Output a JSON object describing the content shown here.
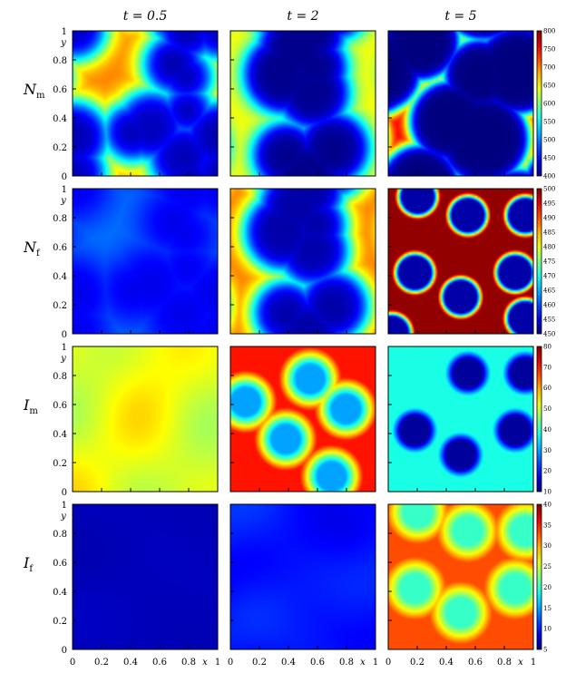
{
  "chart_data": {
    "type": "heatmap",
    "colormap": "jet",
    "column_titles": [
      "t = 0.5",
      "t = 2",
      "t = 5"
    ],
    "row_labels": [
      {
        "main": "N",
        "sub": "m"
      },
      {
        "main": "N",
        "sub": "f"
      },
      {
        "main": "I",
        "sub": "m"
      },
      {
        "main": "I",
        "sub": "f"
      }
    ],
    "axis_label_x": "x",
    "axis_label_y": "y",
    "x_range": [
      0,
      1
    ],
    "y_range": [
      0,
      1
    ],
    "x_ticks": [
      "0",
      "0.2",
      "0.4",
      "0.6",
      "0.8",
      "1"
    ],
    "y_ticks": [
      "0",
      "0.2",
      "0.4",
      "0.6",
      "0.8",
      "1"
    ],
    "colorbars": [
      {
        "min": 400,
        "max": 800,
        "ticks": [
          "400",
          "450",
          "500",
          "550",
          "600",
          "650",
          "700",
          "750",
          "800"
        ]
      },
      {
        "min": 450,
        "max": 500,
        "ticks": [
          "450",
          "455",
          "460",
          "465",
          "470",
          "475",
          "480",
          "485",
          "490",
          "495",
          "500"
        ]
      },
      {
        "min": 10,
        "max": 80,
        "ticks": [
          "10",
          "20",
          "30",
          "40",
          "50",
          "60",
          "70",
          "80"
        ]
      },
      {
        "min": 5,
        "max": 40,
        "ticks": [
          "5",
          "10",
          "15",
          "20",
          "25",
          "30",
          "35",
          "40"
        ]
      }
    ],
    "panels": [
      [
        {
          "pattern": "cells",
          "background": 700,
          "spot": 420,
          "seed": 1,
          "count": 9,
          "rmin": 0.18,
          "rmax": 0.26,
          "noise": 0.03,
          "sharp": 22
        },
        {
          "pattern": "cells",
          "background": 650,
          "spot": 405,
          "seed": 2,
          "count": 7,
          "rmin": 0.22,
          "rmax": 0.3,
          "noise": 0.02,
          "sharp": 26
        },
        {
          "pattern": "cells",
          "background": 760,
          "spot": 400,
          "seed": 3,
          "count": 6,
          "rmin": 0.26,
          "rmax": 0.33,
          "noise": 0.0,
          "sharp": 40
        }
      ],
      [
        {
          "pattern": "cells",
          "background": 462,
          "spot": 455,
          "seed": 1,
          "count": 9,
          "rmin": 0.18,
          "rmax": 0.26,
          "noise": 0.03,
          "sharp": 14
        },
        {
          "pattern": "cells",
          "background": 488,
          "spot": 452,
          "seed": 2,
          "count": 7,
          "rmin": 0.22,
          "rmax": 0.3,
          "noise": 0.02,
          "sharp": 24
        },
        {
          "pattern": "spots",
          "background": 499,
          "spot": 452,
          "seed": 4,
          "spots": [
            [
              0.5,
              0.25
            ],
            [
              0.18,
              0.42
            ],
            [
              0.55,
              0.82
            ],
            [
              0.95,
              0.82
            ],
            [
              0.88,
              0.42
            ],
            [
              0.2,
              0.95
            ],
            [
              0.02,
              0.0
            ],
            [
              0.95,
              0.1
            ]
          ],
          "radius": 0.11,
          "ring": 0.05
        }
      ],
      [
        {
          "pattern": "noise",
          "background": 52,
          "amp": 8,
          "seed": 5
        },
        {
          "pattern": "spots",
          "background": 70,
          "spot": 30,
          "seed": 6,
          "spots": [
            [
              0.38,
              0.36
            ],
            [
              0.8,
              0.57
            ],
            [
              0.55,
              0.78
            ],
            [
              0.1,
              0.62
            ],
            [
              0.7,
              0.1
            ]
          ],
          "radius": 0.1,
          "ring": 0.12
        },
        {
          "pattern": "spots",
          "background": 38,
          "spot": 12,
          "seed": 7,
          "spots": [
            [
              0.5,
              0.25
            ],
            [
              0.18,
              0.42
            ],
            [
              0.55,
              0.82
            ],
            [
              0.95,
              0.82
            ],
            [
              0.88,
              0.42
            ]
          ],
          "radius": 0.1,
          "ring": 0.06
        }
      ],
      [
        {
          "pattern": "noise",
          "background": 7,
          "amp": 0.8,
          "seed": 8
        },
        {
          "pattern": "noise",
          "background": 10,
          "amp": 2.5,
          "seed": 9
        },
        {
          "pattern": "spots",
          "background": 33,
          "spot": 20,
          "seed": 10,
          "spots": [
            [
              0.5,
              0.25
            ],
            [
              0.18,
              0.42
            ],
            [
              0.55,
              0.82
            ],
            [
              0.95,
              0.82
            ],
            [
              0.88,
              0.42
            ],
            [
              0.2,
              0.95
            ]
          ],
          "radius": 0.1,
          "ring": 0.12
        }
      ]
    ]
  }
}
